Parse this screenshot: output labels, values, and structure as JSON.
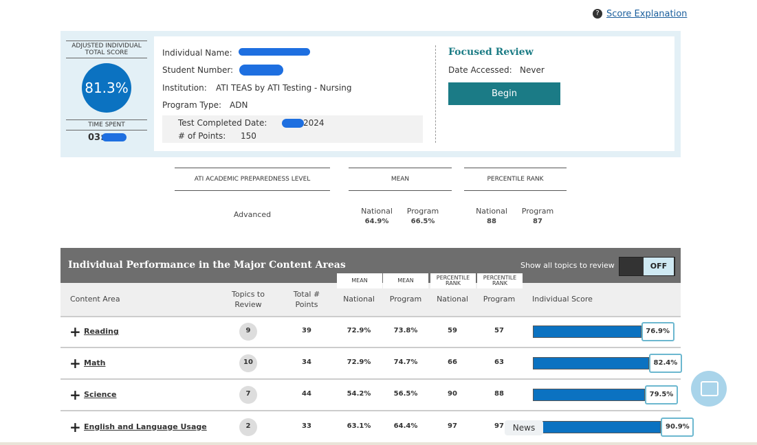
{
  "header": {
    "link": "Score Explanation"
  },
  "score_card": {
    "title": "ADJUSTED INDIVIDUAL TOTAL SCORE",
    "score": "81.3%",
    "time_label": "TIME SPENT",
    "time": "03:"
  },
  "details": {
    "name_label": "Individual Name:",
    "student_label": "Student Number:",
    "institution_label": "Institution:",
    "institution": "ATI TEAS by ATI Testing - Nursing",
    "program_label": "Program Type:",
    "program": "ADN",
    "date_label": "Test Completed Date:",
    "date": "2024",
    "points_label": "# of Points:",
    "points": 150
  },
  "focused_review": {
    "title": "Focused Review",
    "accessed_label": "Date Accessed:",
    "accessed": "Never",
    "button": "Begin"
  },
  "summary": {
    "level_header": "ATI ACADEMIC PREPAREDNESS LEVEL",
    "level": "Advanced",
    "mean_header": "MEAN",
    "rank_header": "PERCENTILE RANK",
    "national_label": "National",
    "program_label": "Program",
    "mean_national": "64.9%",
    "mean_program": "66.5%",
    "rank_national": 88,
    "rank_program": 87
  },
  "table": {
    "title": "Individual Performance in the Major Content Areas",
    "toggle_label": "Show all topics to review",
    "toggle": "OFF",
    "group_headers": [
      "MEAN",
      "MEAN",
      "PERCENTILE RANK",
      "PERCENTILE RANK"
    ],
    "columns": [
      "Content Area",
      "Topics to Review",
      "Total # Points",
      "National",
      "Program",
      "National",
      "Program",
      "Individual Score"
    ],
    "rows": [
      {
        "area": "Reading",
        "topics": 9,
        "points": 39,
        "mean_national": "72.9%",
        "mean_program": "73.8%",
        "rank_national": 59,
        "rank_program": 57,
        "score": {
          "value": 76.9,
          "label": "76.9%"
        }
      },
      {
        "area": "Math",
        "topics": 10,
        "points": 34,
        "mean_national": "72.9%",
        "mean_program": "74.7%",
        "rank_national": 66,
        "rank_program": 63,
        "score": {
          "value": 82.4,
          "label": "82.4%"
        }
      },
      {
        "area": "Science",
        "topics": 7,
        "points": 44,
        "mean_national": "54.2%",
        "mean_program": "56.5%",
        "rank_national": 90,
        "rank_program": 88,
        "score": {
          "value": 79.5,
          "label": "79.5%"
        }
      },
      {
        "area": "English and Language Usage",
        "topics": 2,
        "points": 33,
        "mean_national": "63.1%",
        "mean_program": "64.4%",
        "rank_national": 97,
        "rank_program": 97,
        "score": {
          "value": 90.9,
          "label": "90.9%"
        }
      }
    ]
  },
  "overlay": {
    "news": "News"
  }
}
